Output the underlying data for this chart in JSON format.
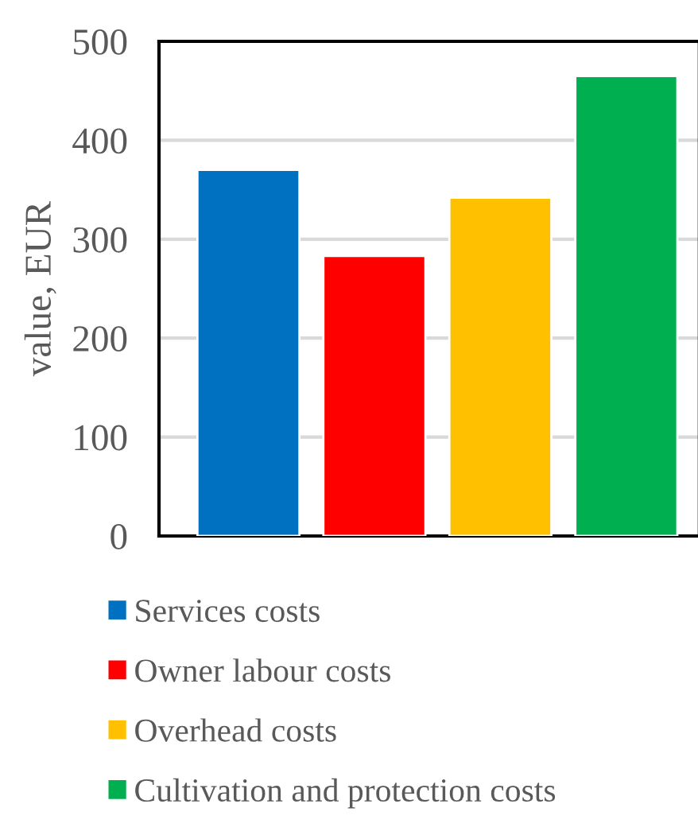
{
  "chart_data": {
    "type": "bar",
    "ylabel": "value, EUR",
    "categories": [
      null,
      null,
      null,
      null
    ],
    "series": [
      {
        "name": "Services costs",
        "color": "#0070c0",
        "values": [
          370,
          null,
          null,
          null
        ]
      },
      {
        "name": "Owner labour costs",
        "color": "#ff0000",
        "values": [
          null,
          283,
          null,
          null
        ]
      },
      {
        "name": "Overhead costs",
        "color": "#ffc000",
        "values": [
          null,
          null,
          342,
          null
        ]
      },
      {
        "name": "Cultivation and protection costs",
        "color": "#00b050",
        "values": [
          null,
          null,
          null,
          465
        ]
      }
    ],
    "ylim": [
      0,
      500
    ],
    "yticks": [
      0,
      100,
      200,
      300,
      400,
      500
    ],
    "grid": "y",
    "legend": "bottom"
  }
}
